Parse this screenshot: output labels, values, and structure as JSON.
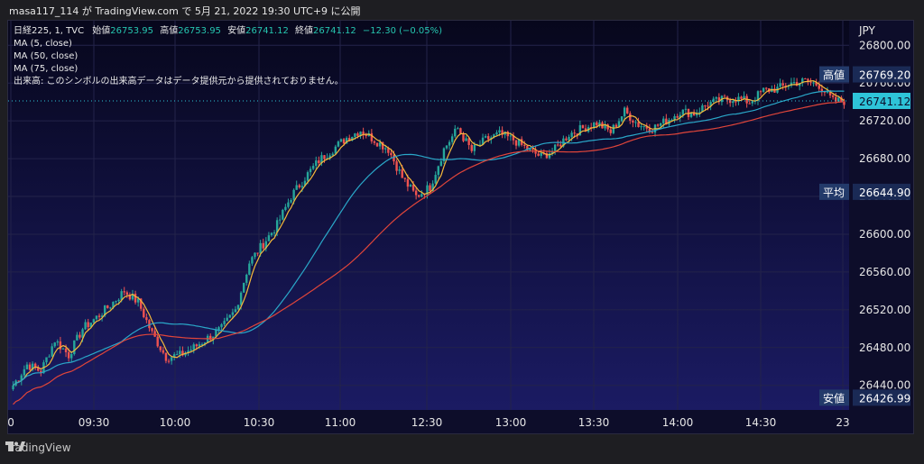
{
  "header": {
    "text": "masa117_114 が TradingView.com で 5月 21, 2022 19:30 UTC+9 に公開"
  },
  "legend": {
    "symbol_line": "日経225, 1, TVC",
    "open_label": "始値",
    "open": "26753.95",
    "high_label": "高値",
    "high": "26753.95",
    "low_label": "安値",
    "low": "26741.12",
    "close_label": "終値",
    "close": "26741.12",
    "change": "−12.30 (−0.05%)",
    "ma1": "MA (5, close)",
    "ma2": "MA (50, close)",
    "ma3": "MA (75, close)",
    "volume_note": "出来高: このシンボルの出来高データはデータ提供元から提供されておりません。"
  },
  "axis": {
    "currency": "JPY",
    "y_ticks": [
      26440,
      26480,
      26520,
      26560,
      26600,
      26640,
      26680,
      26720,
      26760,
      26800
    ],
    "y_tick_labels": [
      "26440.00",
      "26480.00",
      "26520.00",
      "26560.00",
      "26600.00",
      "26640.00",
      "26680.00",
      "26720.00",
      "26760.00",
      "26800.00"
    ],
    "ylim": [
      26414,
      26826
    ],
    "x_labels": [
      "0",
      "09:30",
      "10:00",
      "10:30",
      "11:00",
      "12:30",
      "13:00",
      "13:30",
      "14:00",
      "14:30",
      "23"
    ]
  },
  "markers": {
    "high_label": "高値",
    "high_value": "26769.20",
    "last_value": "26741.12",
    "avg_label": "平均",
    "avg_value": "26644.90",
    "low_label": "安値",
    "low_value": "26426.99"
  },
  "colors": {
    "background": "#0d0d2a",
    "up": "#26a69a",
    "down": "#ef5350",
    "ma5": "#f5b93a",
    "ma50": "#2aa8c9",
    "ma75": "#e0453a",
    "last_price_bg": "#2ec4d8"
  },
  "footer": {
    "brand": "TradingView"
  },
  "chart_data": {
    "type": "candlestick",
    "title": "日経225, 1, TVC",
    "ylabel": "JPY",
    "ylim": [
      26414,
      26826
    ],
    "grid": true,
    "x_labels": [
      "0",
      "09:30",
      "10:00",
      "10:30",
      "11:00",
      "12:30",
      "13:00",
      "13:30",
      "14:00",
      "14:30",
      "23"
    ],
    "close_path_anchors": [
      [
        0,
        26440
      ],
      [
        5,
        26462
      ],
      [
        10,
        26455
      ],
      [
        15,
        26488
      ],
      [
        20,
        26472
      ],
      [
        25,
        26500
      ],
      [
        30,
        26512
      ],
      [
        35,
        26525
      ],
      [
        40,
        26540
      ],
      [
        45,
        26528
      ],
      [
        50,
        26495
      ],
      [
        55,
        26470
      ],
      [
        60,
        26472
      ],
      [
        65,
        26480
      ],
      [
        70,
        26490
      ],
      [
        75,
        26500
      ],
      [
        80,
        26520
      ],
      [
        85,
        26570
      ],
      [
        90,
        26590
      ],
      [
        95,
        26610
      ],
      [
        100,
        26640
      ],
      [
        105,
        26660
      ],
      [
        110,
        26678
      ],
      [
        115,
        26690
      ],
      [
        120,
        26702
      ],
      [
        125,
        26710
      ],
      [
        130,
        26700
      ],
      [
        135,
        26690
      ],
      [
        140,
        26660
      ],
      [
        145,
        26640
      ],
      [
        150,
        26650
      ],
      [
        155,
        26690
      ],
      [
        160,
        26712
      ],
      [
        165,
        26688
      ],
      [
        170,
        26700
      ],
      [
        175,
        26706
      ],
      [
        180,
        26700
      ],
      [
        185,
        26690
      ],
      [
        190,
        26682
      ],
      [
        195,
        26690
      ],
      [
        200,
        26706
      ],
      [
        205,
        26712
      ],
      [
        210,
        26718
      ],
      [
        215,
        26708
      ],
      [
        220,
        26730
      ],
      [
        225,
        26716
      ],
      [
        230,
        26712
      ],
      [
        235,
        26720
      ],
      [
        240,
        26730
      ],
      [
        245,
        26728
      ],
      [
        250,
        26738
      ],
      [
        255,
        26742
      ],
      [
        260,
        26744
      ],
      [
        265,
        26740
      ],
      [
        270,
        26752
      ],
      [
        275,
        26754
      ],
      [
        280,
        26760
      ],
      [
        285,
        26762
      ],
      [
        290,
        26758
      ],
      [
        295,
        26741
      ]
    ],
    "series": [
      {
        "name": "MA (5, close)"
      },
      {
        "name": "MA (50, close)"
      },
      {
        "name": "MA (75, close)"
      }
    ],
    "last_price": 26741.12,
    "session_high": 26769.2,
    "session_low": 26426.99,
    "average": 26644.9
  }
}
